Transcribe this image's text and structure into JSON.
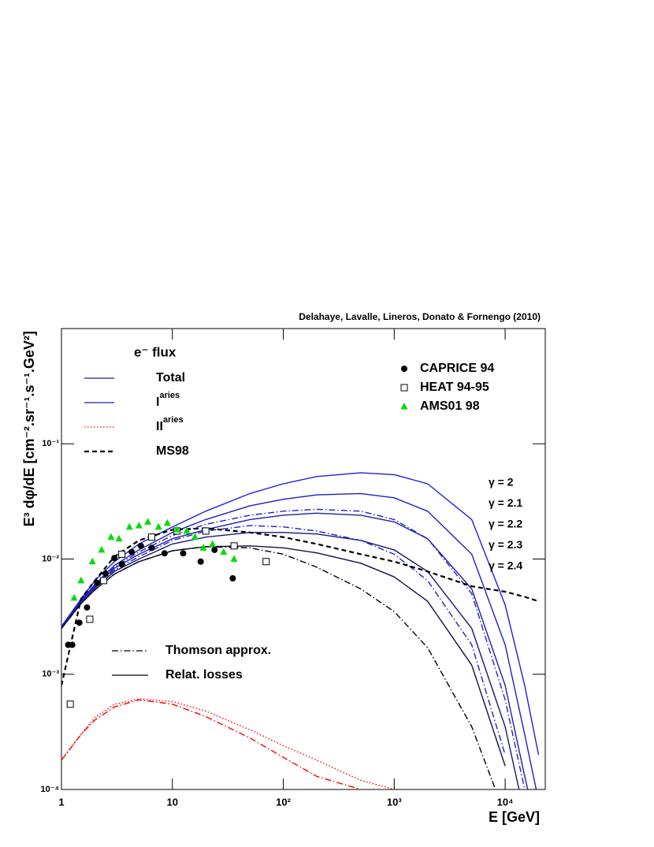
{
  "chart_data": {
    "type": "line",
    "annotation": "Delahaye, Lavalle, Lineros, Donato & Fornengo (2010)",
    "title": "e⁻ flux",
    "x_label": "E [GeV]",
    "y_label": "E³ dφ/dE [cm⁻².sr⁻¹.s⁻¹.GeV²]",
    "log_x": true,
    "log_y": true,
    "xlim": [
      1,
      23000
    ],
    "ylim": [
      0.0001,
      1
    ],
    "xticks": [
      1,
      10,
      {
        "value": 100,
        "label": "10²"
      },
      {
        "value": 1000,
        "label": "10³"
      },
      {
        "value": 10000,
        "label": "10⁴"
      }
    ],
    "yticks": [
      {
        "value": 0.0001,
        "label": "10⁻⁴"
      },
      {
        "value": 0.001,
        "label": "10⁻³"
      },
      {
        "value": 0.01,
        "label": "10⁻²"
      },
      {
        "value": 0.1,
        "label": "10⁻¹"
      }
    ],
    "legend": [
      {
        "text": "Total",
        "color": "#1a1aa8",
        "dash": "solid"
      },
      {
        "text": "I",
        "sup": "aries",
        "color": "#1a1aa8",
        "dash": "solid"
      },
      {
        "text": "II",
        "sup": "aries",
        "color": "#ff0000",
        "dash": "dotted"
      },
      {
        "text": "MS98",
        "color": "#000000",
        "dash": "dashed"
      }
    ],
    "styles": [
      {
        "text": "Thomson approx.",
        "dash": "dashdot"
      },
      {
        "text": "Relat. losses",
        "dash": "solid"
      }
    ],
    "x": [
      1,
      1.5,
      2,
      3,
      5,
      10,
      20,
      50,
      100,
      200,
      500,
      1000,
      2000,
      5000,
      10000,
      15000,
      20000
    ],
    "series": [
      {
        "name": "γ = 2",
        "color": "#1f1fe6",
        "dash": "solid",
        "values": [
          0.0026,
          0.0045,
          0.0065,
          0.0095,
          0.0135,
          0.019,
          0.026,
          0.037,
          0.045,
          0.052,
          0.056,
          0.054,
          0.045,
          0.022,
          0.004,
          0.0008,
          0.0002
        ]
      },
      {
        "name": "γ = 2.1",
        "color": "#1f1fc8",
        "dash": "solid",
        "values": [
          0.0026,
          0.0044,
          0.006,
          0.0088,
          0.012,
          0.017,
          0.022,
          0.029,
          0.033,
          0.036,
          0.037,
          0.034,
          0.026,
          0.011,
          0.0018,
          0.0003,
          8e-05
        ]
      },
      {
        "name": "γ = 2.2",
        "color": "#1f1fa8",
        "dash": "solid",
        "values": [
          0.0026,
          0.0043,
          0.0058,
          0.0083,
          0.011,
          0.015,
          0.018,
          0.022,
          0.024,
          0.025,
          0.024,
          0.021,
          0.015,
          0.0055,
          0.0008,
          0.00013,
          4e-05
        ]
      },
      {
        "name": "γ = 2.3",
        "color": "#16167a",
        "dash": "solid",
        "values": [
          0.0025,
          0.0042,
          0.0056,
          0.0078,
          0.01,
          0.0135,
          0.0155,
          0.017,
          0.017,
          0.0165,
          0.0145,
          0.012,
          0.0078,
          0.0025,
          0.00035,
          6e-05,
          null
        ]
      },
      {
        "name": "γ = 2.4",
        "color": "#10104a",
        "dash": "solid",
        "values": [
          0.0025,
          0.0041,
          0.0054,
          0.0074,
          0.0095,
          0.0118,
          0.0128,
          0.013,
          0.0125,
          0.0113,
          0.0092,
          0.007,
          0.0043,
          0.0012,
          0.00016,
          null,
          null
        ]
      },
      {
        "color": "#2020d0",
        "dash": "dashdot",
        "values": [
          0.0026,
          0.0043,
          0.0059,
          0.0085,
          0.0115,
          0.016,
          0.02,
          0.024,
          0.026,
          0.027,
          0.026,
          0.022,
          0.015,
          0.005,
          0.0006,
          0.0001,
          null
        ]
      },
      {
        "color": "#2020d0",
        "dash": "dashdot",
        "values": [
          0.0025,
          0.0042,
          0.0057,
          0.008,
          0.0105,
          0.0145,
          0.0175,
          0.0195,
          0.019,
          0.0175,
          0.0145,
          0.011,
          0.0065,
          0.0018,
          0.0002,
          null,
          null
        ]
      },
      {
        "color": "#000000",
        "dash": "dashdot",
        "values": [
          0.0025,
          0.0041,
          0.0054,
          0.0074,
          0.0095,
          0.0118,
          0.0128,
          0.0125,
          0.011,
          0.0085,
          0.0055,
          0.0035,
          0.0017,
          0.00035,
          6e-05,
          null,
          null
        ]
      },
      {
        "color": "#000000",
        "dash": "dashed",
        "values": [
          0.0008,
          0.0045,
          0.0065,
          0.0105,
          0.0145,
          0.018,
          0.0185,
          0.017,
          0.0155,
          0.0135,
          0.011,
          0.0095,
          0.0078,
          0.0058,
          0.0052,
          0.0047,
          0.0043
        ]
      },
      {
        "color": "#ff0000",
        "dash": "dotted",
        "values": [
          0.00018,
          0.0003,
          0.00042,
          0.00055,
          0.00061,
          0.00058,
          0.00048,
          0.00033,
          0.00024,
          0.00018,
          0.00012,
          0.0001,
          null,
          null,
          null,
          null,
          null
        ]
      },
      {
        "color": "#ff0000",
        "dash": "dashdot",
        "values": [
          0.00018,
          0.0003,
          0.0004,
          0.00052,
          0.0006,
          0.00055,
          0.00043,
          0.00028,
          0.00019,
          0.00013,
          0.0001,
          null,
          null,
          null,
          null,
          null,
          null
        ]
      }
    ],
    "points": [
      {
        "name": "CAPRICE 94",
        "marker": "circle",
        "color": "#000000",
        "x": [
          1.15,
          1.25,
          1.45,
          1.7,
          2.1,
          2.5,
          3.0,
          3.5,
          4.3,
          5.2,
          6.5,
          8.5,
          12.5,
          18,
          24,
          35
        ],
        "values": [
          0.0018,
          0.0018,
          0.0028,
          0.0038,
          0.0062,
          0.0075,
          0.0102,
          0.009,
          0.0115,
          0.013,
          0.0125,
          0.0112,
          0.0112,
          0.0095,
          0.012,
          0.0068
        ]
      },
      {
        "name": "HEAT 94-95",
        "marker": "square",
        "color": "#000000",
        "x": [
          1.2,
          1.8,
          2.4,
          3.5,
          6.5,
          11,
          20,
          36,
          70
        ],
        "values": [
          0.00055,
          0.003,
          0.0065,
          0.011,
          0.0155,
          0.0175,
          0.0175,
          0.013,
          0.0095
        ]
      },
      {
        "name": "AMS01 98",
        "marker": "triangle",
        "color": "#00dd00",
        "x": [
          1.3,
          1.5,
          1.9,
          2.3,
          2.8,
          3.3,
          4.1,
          5.0,
          6.0,
          7.5,
          9,
          11,
          13.5,
          16,
          19,
          23,
          29,
          36
        ],
        "values": [
          0.0046,
          0.0065,
          0.0095,
          0.012,
          0.0155,
          0.015,
          0.019,
          0.0195,
          0.021,
          0.019,
          0.0205,
          0.018,
          0.0175,
          0.0155,
          0.0125,
          0.0135,
          0.0115,
          0.01
        ]
      }
    ]
  }
}
